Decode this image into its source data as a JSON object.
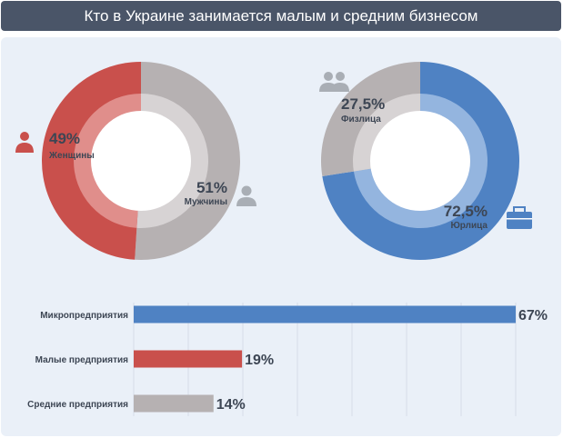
{
  "header": {
    "title": "Кто в Украине занимается малым и средним бизнесом"
  },
  "colors": {
    "red": "#c9504c",
    "red_inner": "#e08e8b",
    "gray": "#b6b1b2",
    "gray_inner": "#d7d3d4",
    "blue": "#4f82c3",
    "blue_inner": "#94b5df",
    "icon_red": "#c9504c",
    "icon_gray": "#a9aeb5",
    "icon_blue": "#4f82c3"
  },
  "chart_data": [
    {
      "type": "pie",
      "slices": [
        {
          "label": "Женщины",
          "value": 49,
          "value_label": "49%",
          "color": "#c9504c",
          "icon": "woman-icon"
        },
        {
          "label": "Мужчины",
          "value": 51,
          "value_label": "51%",
          "color": "#b6b1b2",
          "icon": "man-icon"
        }
      ]
    },
    {
      "type": "pie",
      "slices": [
        {
          "label": "Юрлица",
          "value": 72.5,
          "value_label": "72,5%",
          "color": "#4f82c3",
          "icon": "briefcase-icon"
        },
        {
          "label": "Физлица",
          "value": 27.5,
          "value_label": "27,5%",
          "color": "#b6b1b2",
          "icon": "people-icon"
        }
      ]
    },
    {
      "type": "bar",
      "orientation": "horizontal",
      "categories": [
        "Микропредприятия",
        "Малые предприятия",
        "Средние предприятия"
      ],
      "values": [
        67,
        19,
        14
      ],
      "value_labels": [
        "67%",
        "19%",
        "14%"
      ],
      "colors": [
        "#4f82c3",
        "#c9504c",
        "#b6b1b2"
      ],
      "xlim": [
        0,
        67
      ],
      "grid": true
    }
  ]
}
